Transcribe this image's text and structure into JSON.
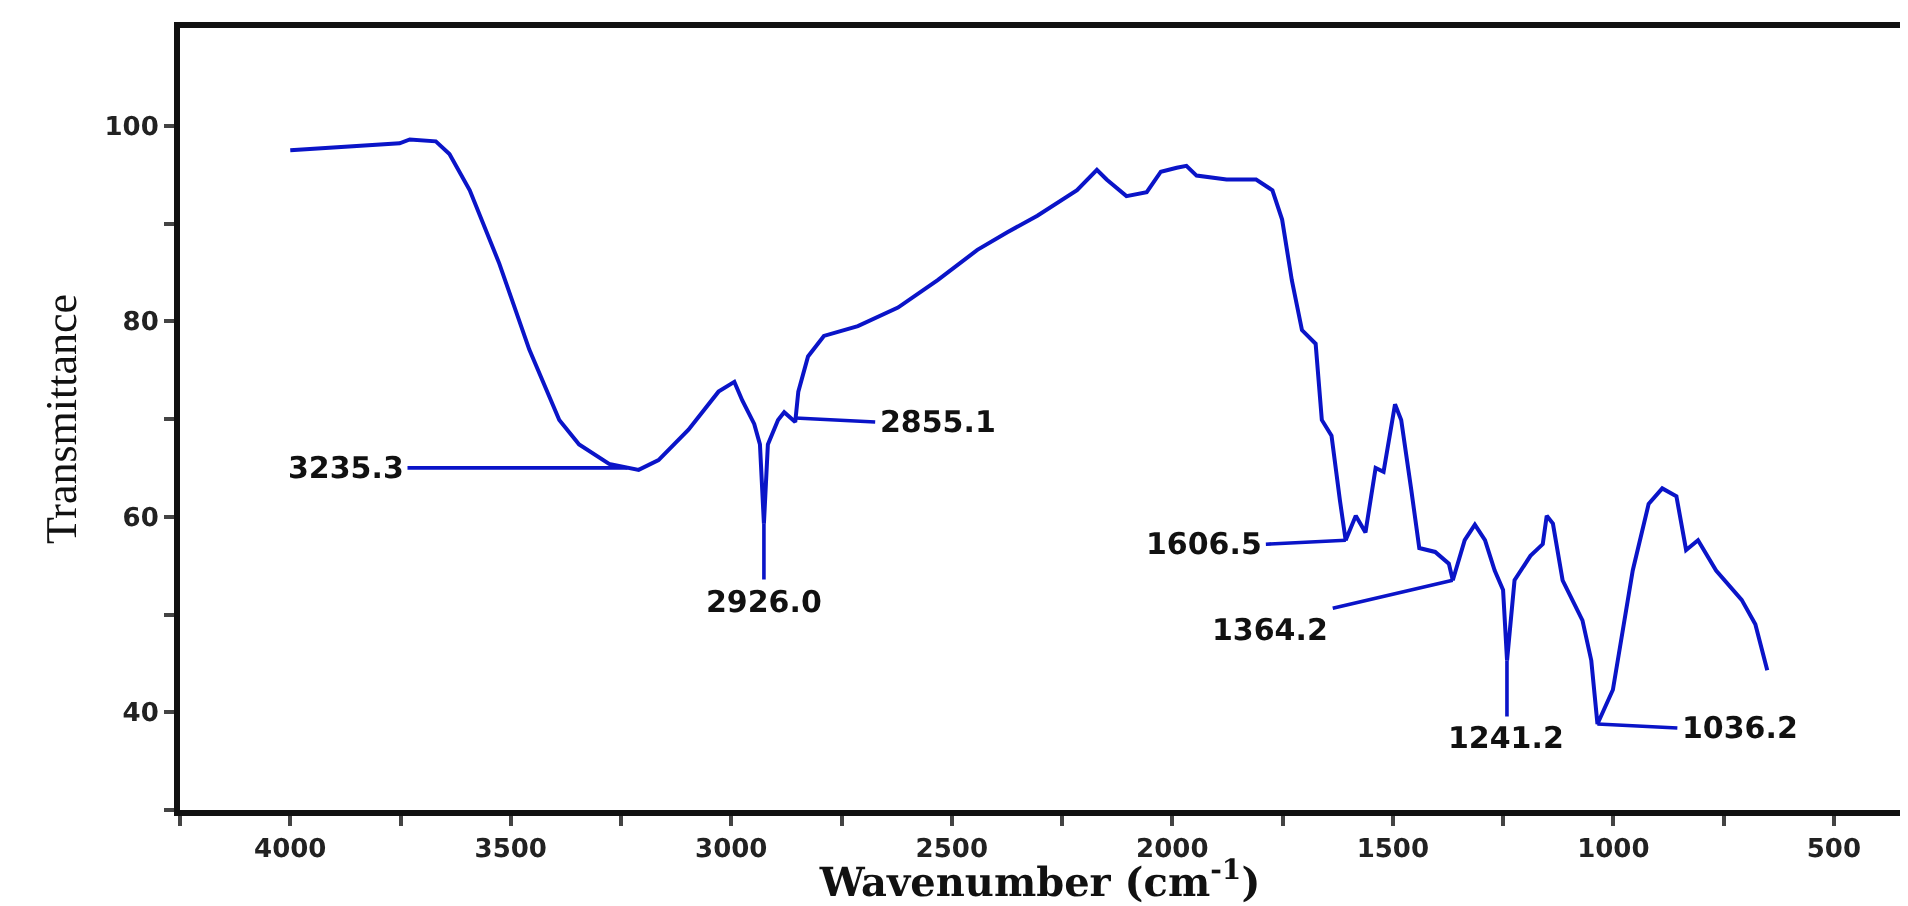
{
  "chart_data": {
    "type": "line",
    "xlabel": "Wavenumber (cm$^{-1}$)",
    "ylabel": "Transmittance",
    "xlim": [
      4250,
      350
    ],
    "ylim": [
      30,
      110
    ],
    "xticks": [
      {
        "value": 4250,
        "label": null
      },
      4000,
      {
        "value": 3750,
        "label": null
      },
      3500,
      {
        "value": 3250,
        "label": null
      },
      3000,
      {
        "value": 2750,
        "label": null
      },
      2500,
      {
        "value": 2250,
        "label": null
      },
      2000,
      {
        "value": 1750,
        "label": null
      },
      1500,
      {
        "value": 1250,
        "label": null
      },
      1000,
      {
        "value": 750,
        "label": null
      },
      500
    ],
    "yticks": [
      {
        "value": 30,
        "label": null
      },
      40,
      {
        "value": 50,
        "label": null
      },
      60,
      {
        "value": 70,
        "label": null
      },
      80,
      {
        "value": 90,
        "label": null
      },
      100
    ],
    "marker": "none",
    "line_style": "solid",
    "series": [
      {
        "color": "#0a14c8",
        "x": [
          4000,
          3752,
          3729,
          3670,
          3639,
          3593,
          3526,
          3458,
          3390,
          3345,
          3277,
          3210,
          3165,
          3097,
          3029,
          2993,
          2975,
          2948,
          2935,
          2926,
          2917,
          2894,
          2880,
          2855,
          2848,
          2826,
          2790,
          2713,
          2622,
          2532,
          2442,
          2374,
          2306,
          2216,
          2171,
          2149,
          2104,
          2058,
          2026,
          1990,
          1968,
          1945,
          1877,
          1810,
          1773,
          1751,
          1729,
          1706,
          1675,
          1661,
          1639,
          1620,
          1607,
          1584,
          1562,
          1539,
          1521,
          1495,
          1481,
          1458,
          1440,
          1404,
          1373,
          1364,
          1337,
          1314,
          1291,
          1269,
          1250,
          1241,
          1224,
          1188,
          1160,
          1151,
          1137,
          1115,
          1070,
          1050,
          1036,
          1001,
          956,
          920,
          889,
          857,
          835,
          808,
          767,
          709,
          678,
          651
        ],
        "values": [
          97.5,
          98.2,
          98.6,
          98.4,
          97.1,
          93.4,
          85.9,
          77.1,
          69.9,
          67.4,
          65.4,
          64.8,
          65.8,
          68.9,
          72.8,
          73.8,
          71.9,
          69.5,
          67.4,
          59.3,
          67.4,
          69.9,
          70.7,
          69.7,
          72.8,
          76.4,
          78.5,
          79.5,
          81.4,
          84.2,
          87.3,
          89.1,
          90.8,
          93.4,
          95.5,
          94.5,
          92.8,
          93.2,
          95.3,
          95.7,
          95.9,
          94.9,
          94.5,
          94.5,
          93.4,
          90.4,
          84.2,
          79.1,
          77.7,
          69.9,
          68.3,
          61.7,
          57.6,
          60.1,
          58.4,
          65.0,
          64.6,
          71.5,
          69.9,
          62.7,
          56.8,
          56.4,
          55.2,
          53.5,
          57.6,
          59.2,
          57.6,
          54.5,
          52.5,
          45.3,
          53.5,
          56.0,
          57.2,
          60.1,
          59.3,
          53.5,
          49.4,
          45.3,
          38.8,
          42.3,
          54.5,
          61.3,
          62.9,
          62.1,
          56.6,
          57.6,
          54.5,
          51.5,
          49.0,
          44.3
        ]
      }
    ],
    "annotations": [
      {
        "text": "3235.3",
        "x": 3235.3,
        "y": 65.0
      },
      {
        "text": "2926.0",
        "x": 2926.0,
        "y": 59.3
      },
      {
        "text": "2855.1",
        "x": 2855.1,
        "y": 70.1
      },
      {
        "text": "1606.5",
        "x": 1606.5,
        "y": 57.6
      },
      {
        "text": "1364.2",
        "x": 1364.2,
        "y": 53.5
      },
      {
        "text": "1241.2",
        "x": 1241.2,
        "y": 45.3
      },
      {
        "text": "1036.2",
        "x": 1036.2,
        "y": 38.8
      }
    ]
  }
}
